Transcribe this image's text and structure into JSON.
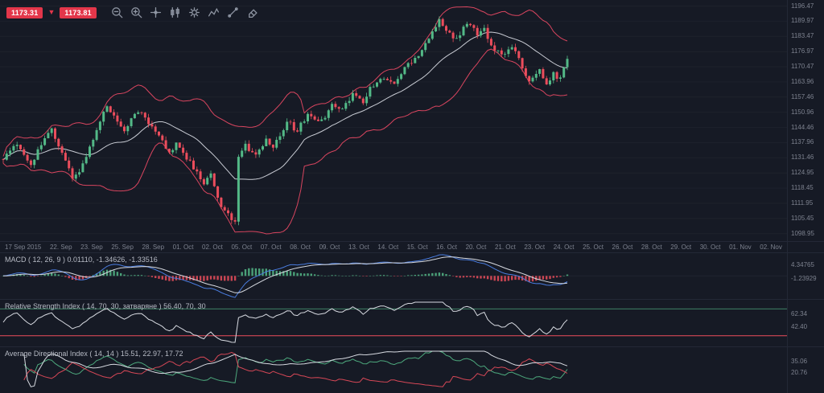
{
  "app": {
    "title": "Trading chart",
    "bg": "#161a25"
  },
  "toolbar": {
    "bid": "1173.31",
    "ask": "1173.81",
    "badge_color": "#e3364a",
    "icons": [
      "zoom-out-icon",
      "zoom-in-icon",
      "crosshair-icon",
      "candlestick-icon",
      "settings-gear-icon",
      "indicator-icon",
      "trendline-icon",
      "eraser-icon"
    ]
  },
  "price_axis": {
    "labels": [
      "1196.47",
      "1189.97",
      "1183.47",
      "1176.97",
      "1170.47",
      "1163.96",
      "1157.46",
      "1150.96",
      "1144.46",
      "1137.96",
      "1131.46",
      "1124.95",
      "1118.45",
      "1111.95",
      "1105.45",
      "1098.95"
    ]
  },
  "date_axis": {
    "labels": [
      "17 Sep 2015",
      "22. Sep",
      "23. Sep",
      "25. Sep",
      "28. Sep",
      "01. Oct",
      "02. Oct",
      "05. Oct",
      "07. Oct",
      "08. Oct",
      "09. Oct",
      "13. Oct",
      "14. Oct",
      "15. Oct",
      "16. Oct",
      "20. Oct",
      "21. Oct",
      "23. Oct",
      "24. Oct",
      "25. Oct",
      "26. Oct",
      "28. Oct",
      "29. Oct",
      "30. Oct",
      "01. Nov",
      "02. Nov"
    ]
  },
  "panels": {
    "macd": {
      "label": "MACD ( 12, 26, 9 ) 0.01110, -1.34626, -1.33516",
      "axis": [
        "4.34765",
        "-1.23929"
      ]
    },
    "rsi": {
      "label": "Relative Strength Index ( 14, 70, 30, затваряне ) 56.40, 70, 30",
      "axis": [
        "62.34",
        "42.40"
      ],
      "upper_level": 70,
      "lower_level": 30
    },
    "adx": {
      "label": "Average Directional Index ( 14, 14 ) 15.51, 22.97, 17.72",
      "axis": [
        "35.06",
        "20.76"
      ]
    }
  },
  "chart_data": {
    "type": "candlestick",
    "title": "Gold price with Bollinger Bands, MACD, RSI and ADX",
    "last_price": 1173.81,
    "price_range": [
      1098.95,
      1196.47
    ],
    "x_range": [
      "17 Sep 2015",
      "02 Nov 2015"
    ],
    "num_candles": 164,
    "anchors": [
      [
        0,
        1131
      ],
      [
        4,
        1137
      ],
      [
        8,
        1129
      ],
      [
        12,
        1140
      ],
      [
        14,
        1143
      ],
      [
        17,
        1133
      ],
      [
        20,
        1123
      ],
      [
        23,
        1128
      ],
      [
        26,
        1140
      ],
      [
        30,
        1154
      ],
      [
        32,
        1149
      ],
      [
        35,
        1144
      ],
      [
        39,
        1152
      ],
      [
        42,
        1146
      ],
      [
        45,
        1141
      ],
      [
        48,
        1133
      ],
      [
        50,
        1138
      ],
      [
        52,
        1134
      ],
      [
        55,
        1127
      ],
      [
        58,
        1120
      ],
      [
        60,
        1124
      ],
      [
        62,
        1114
      ],
      [
        64,
        1108
      ],
      [
        66,
        1105
      ],
      [
        67,
        1104
      ],
      [
        68,
        1133
      ],
      [
        70,
        1137
      ],
      [
        73,
        1132
      ],
      [
        76,
        1139
      ],
      [
        78,
        1135
      ],
      [
        82,
        1147
      ],
      [
        85,
        1143
      ],
      [
        88,
        1150
      ],
      [
        92,
        1147
      ],
      [
        95,
        1155
      ],
      [
        98,
        1152
      ],
      [
        101,
        1159
      ],
      [
        104,
        1155
      ],
      [
        106,
        1161
      ],
      [
        110,
        1166
      ],
      [
        113,
        1163
      ],
      [
        116,
        1170
      ],
      [
        120,
        1176
      ],
      [
        123,
        1183
      ],
      [
        126,
        1191
      ],
      [
        128,
        1186
      ],
      [
        131,
        1182
      ],
      [
        134,
        1189
      ],
      [
        137,
        1185
      ],
      [
        139,
        1187
      ],
      [
        141,
        1180
      ],
      [
        144,
        1175
      ],
      [
        147,
        1179
      ],
      [
        150,
        1170
      ],
      [
        152,
        1165
      ],
      [
        155,
        1169
      ],
      [
        157,
        1164
      ],
      [
        159,
        1167
      ],
      [
        161,
        1166
      ],
      [
        163,
        1173.81
      ]
    ],
    "overlays": [
      {
        "name": "Bollinger Bands",
        "period": 20,
        "stddev": 2,
        "band_color": "#d9455f",
        "middle_color": "#c9ccd4"
      }
    ],
    "indicators": [
      {
        "name": "MACD",
        "params": [
          12,
          26,
          9
        ],
        "values": [
          0.0111,
          -1.34626,
          -1.33516
        ]
      },
      {
        "name": "Relative Strength Index",
        "params": [
          14,
          70,
          30
        ],
        "value": 56.4
      },
      {
        "name": "Average Directional Index",
        "params": [
          14,
          14
        ],
        "values": [
          15.51,
          22.97,
          17.72
        ]
      }
    ],
    "colors": {
      "up": "#53b987",
      "down": "#eb4d5c",
      "band": "#d9455f",
      "mid": "#c9ccd4",
      "macd": "#4a7de0",
      "signal": "#d8dbe2",
      "rsi": "#d8dbe2",
      "adx": "#d8dbe2",
      "di_plus": "#53b987",
      "di_minus": "#eb4d5c"
    }
  }
}
